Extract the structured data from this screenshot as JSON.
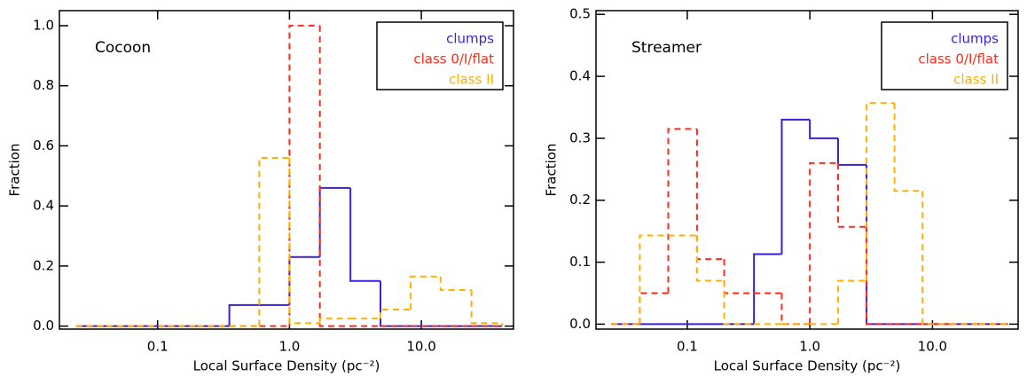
{
  "chart_data": [
    {
      "type": "histogram",
      "annotation": "Cocoon",
      "xlabel": "Local Surface Density (pc⁻²)",
      "ylabel": "Fraction",
      "xscale": "log",
      "xlim": [
        0.018,
        50
      ],
      "ylim": [
        -0.01,
        1.05
      ],
      "xticks": [
        0.1,
        {
          "value": 1,
          "label": "1.0"
        },
        {
          "value": 10,
          "label": "10.0"
        }
      ],
      "yticks": [
        {
          "value": 0,
          "label": "0.0"
        },
        0.2,
        0.4,
        0.6,
        0.8,
        {
          "value": 1,
          "label": "1.0"
        }
      ],
      "legend": "upper right",
      "bins": [
        0.024,
        0.041,
        0.07,
        0.12,
        0.2,
        0.35,
        0.59,
        1.0,
        1.7,
        2.9,
        4.9,
        8.3,
        14,
        24,
        41
      ],
      "series": [
        {
          "name": "clumps",
          "color": "#3b1fd6",
          "linestyle": "solid",
          "values": [
            0,
            0,
            0,
            0,
            0,
            0.07,
            0.07,
            0.23,
            0.46,
            0.15,
            0,
            0,
            0,
            0
          ]
        },
        {
          "name": "class 0/I/flat",
          "color": "#ff2a1a",
          "linestyle": "dashed",
          "values": [
            0,
            0,
            0,
            0,
            0,
            0,
            0,
            1.0,
            0,
            0,
            0,
            0,
            0,
            0
          ]
        },
        {
          "name": "class II",
          "color": "#ffb000",
          "linestyle": "dashed",
          "values": [
            0,
            0,
            0,
            0,
            0,
            0,
            0.56,
            0.01,
            0.025,
            0.025,
            0.055,
            0.165,
            0.12,
            0.01
          ]
        }
      ]
    },
    {
      "type": "histogram",
      "annotation": "Streamer",
      "xlabel": "Local Surface Density (pc⁻²)",
      "ylabel": "Fraction",
      "xscale": "log",
      "xlim": [
        0.018,
        50
      ],
      "ylim": [
        -0.008,
        0.506
      ],
      "xticks": [
        0.1,
        {
          "value": 1,
          "label": "1.0"
        },
        {
          "value": 10,
          "label": "10.0"
        }
      ],
      "yticks": [
        {
          "value": 0,
          "label": "0.0"
        },
        0.1,
        0.2,
        0.3,
        0.4,
        0.5
      ],
      "legend": "upper right",
      "bins": [
        0.024,
        0.041,
        0.07,
        0.12,
        0.2,
        0.35,
        0.59,
        1.0,
        1.7,
        2.9,
        4.9,
        8.3,
        14,
        24,
        41
      ],
      "series": [
        {
          "name": "clumps",
          "color": "#3b1fd6",
          "linestyle": "solid",
          "values": [
            0,
            0,
            0,
            0,
            0,
            0.113,
            0.33,
            0.3,
            0.257,
            0,
            0,
            0,
            0,
            0
          ]
        },
        {
          "name": "class 0/I/flat",
          "color": "#ff2a1a",
          "linestyle": "dashed",
          "values": [
            0,
            0.05,
            0.315,
            0.105,
            0.05,
            0.05,
            0,
            0.26,
            0.157,
            0,
            0,
            0,
            0,
            0
          ]
        },
        {
          "name": "class II",
          "color": "#ffb000",
          "linestyle": "dashed",
          "values": [
            0,
            0.143,
            0.143,
            0.07,
            0,
            0,
            0,
            0,
            0.07,
            0.357,
            0.215,
            0,
            0,
            0
          ]
        }
      ]
    }
  ]
}
